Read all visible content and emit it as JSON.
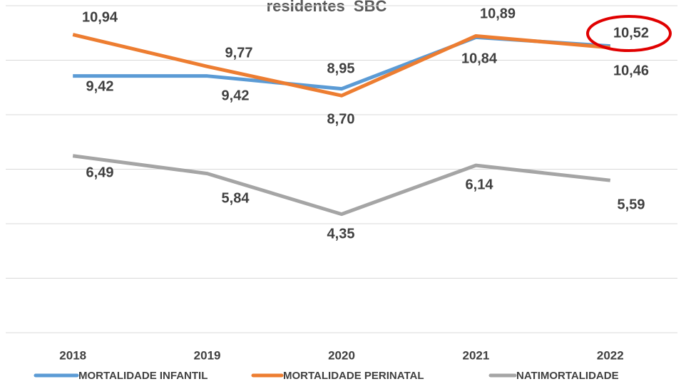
{
  "chart_data": {
    "type": "line",
    "title": "residentes  SBC",
    "categories": [
      "2018",
      "2019",
      "2020",
      "2021",
      "2022"
    ],
    "series": [
      {
        "name": "MORTALIDADE INFANTIL",
        "color": "#5b9bd5",
        "values": [
          9.42,
          9.42,
          8.95,
          10.84,
          10.52
        ],
        "value_labels": [
          "9,42",
          "9,42",
          "8,95",
          "10,84",
          "10,52"
        ]
      },
      {
        "name": "MORTALIDADE PERINATAL",
        "color": "#ed7d31",
        "values": [
          10.94,
          9.77,
          8.7,
          10.89,
          10.46
        ],
        "value_labels": [
          "10,94",
          "9,77",
          "8,70",
          "10,89",
          "10,46"
        ]
      },
      {
        "name": "NATIMORTALIDADE",
        "color": "#a5a5a5",
        "values": [
          6.49,
          5.84,
          4.35,
          6.14,
          5.59
        ],
        "value_labels": [
          "6,49",
          "5,84",
          "4,35",
          "6,14",
          "5,59"
        ]
      }
    ],
    "ylim": [
      0,
      12
    ],
    "yticks": [
      0,
      2,
      4,
      6,
      8,
      10,
      12
    ],
    "grid": true
  }
}
